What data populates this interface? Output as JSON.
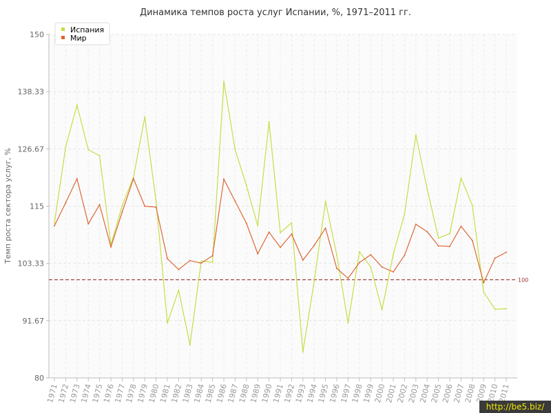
{
  "chart_data": {
    "type": "line",
    "title": "Динамика темпов роста услуг Испании, %, 1971–2011 гг.",
    "ylabel": "Темп роста сектора услуг, %",
    "xlabel": "",
    "ylim": [
      80,
      150
    ],
    "yticks": [
      "80",
      "91.67",
      "103.33",
      "115",
      "126.67",
      "138.33",
      "150"
    ],
    "ytick_values": [
      80,
      91.67,
      103.33,
      115,
      126.67,
      138.33,
      150
    ],
    "categories": [
      "1971",
      "1972",
      "1973",
      "1974",
      "1975",
      "1976",
      "1977",
      "1978",
      "1979",
      "1980",
      "1981",
      "1982",
      "1983",
      "1984",
      "1985",
      "1986",
      "1987",
      "1988",
      "1989",
      "1990",
      "1991",
      "1992",
      "1993",
      "1994",
      "1995",
      "1996",
      "1997",
      "1998",
      "1999",
      "2000",
      "2001",
      "2002",
      "2003",
      "2004",
      "2005",
      "2006",
      "2007",
      "2008",
      "2009",
      "2010",
      "2011"
    ],
    "series": [
      {
        "name": "Испания",
        "color": "#c5dd44",
        "values": [
          111.5,
          127.1,
          135.6,
          126.5,
          125.3,
          107.1,
          115.1,
          120.9,
          133.2,
          116.0,
          91.2,
          97.9,
          86.7,
          103.8,
          103.6,
          140.4,
          126.5,
          119.2,
          111.0,
          132.2,
          109.6,
          111.6,
          85.3,
          99.7,
          116.0,
          105.0,
          91.2,
          105.7,
          102.6,
          93.9,
          105.2,
          113.4,
          129.5,
          118.5,
          108.5,
          109.4,
          120.7,
          115.2,
          97.5,
          94.0,
          94.1
        ]
      },
      {
        "name": "Мир",
        "color": "#dd6633",
        "values": [
          111.0,
          115.7,
          120.6,
          111.4,
          115.3,
          106.7,
          113.8,
          120.6,
          115.0,
          114.8,
          104.3,
          102.1,
          103.9,
          103.4,
          104.9,
          120.5,
          116.0,
          111.5,
          105.3,
          109.7,
          106.6,
          109.3,
          104.0,
          107.0,
          110.5,
          102.3,
          100.3,
          103.5,
          105.1,
          102.6,
          101.6,
          105.0,
          111.3,
          109.8,
          106.9,
          106.8,
          110.9,
          108.0,
          99.4,
          104.4,
          105.6
        ]
      }
    ],
    "reference_line": {
      "value": 100,
      "label": "100",
      "color": "#993333"
    },
    "legend_position": "top-left",
    "grid": true
  },
  "watermark": "http://be5.biz/"
}
